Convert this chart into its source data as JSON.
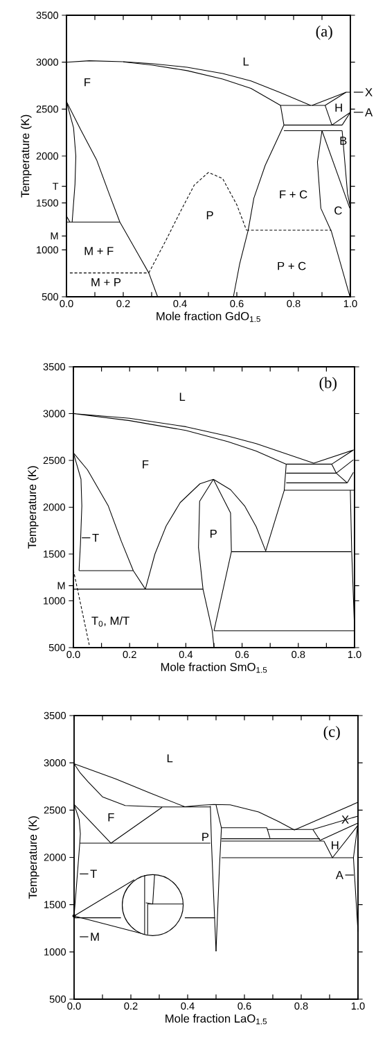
{
  "chart_data": [
    {
      "type": "line",
      "title": "(a)",
      "xlabel": "Mole fraction  GdO$_{1.5}$",
      "ylabel": "Temperature  (K)",
      "color": "#000000",
      "marker": "none",
      "line_style": "solid",
      "xlim": [
        0,
        1
      ],
      "ylim": [
        500,
        3500
      ],
      "xticks": [
        {
          "value": 0,
          "label": "0.0"
        },
        {
          "value": 0.1,
          "label": null
        },
        0.2,
        {
          "value": 0.3,
          "label": null
        },
        0.4,
        {
          "value": 0.5,
          "label": null
        },
        0.6,
        {
          "value": 0.7,
          "label": null
        },
        0.8,
        {
          "value": 0.9,
          "label": null
        },
        {
          "value": 1,
          "label": "1.0"
        }
      ],
      "yticks": [
        500,
        1000,
        {
          "value": 1148,
          "label": "M"
        },
        1500,
        {
          "value": 1677,
          "label": "T"
        },
        2000,
        2500,
        3000,
        3500
      ],
      "series": [
        {
          "x": [
            0,
            0.08,
            0.2,
            0.3,
            0.425,
            0.55,
            0.65,
            0.75,
            0.86
          ],
          "values": [
            3000,
            3015,
            3005,
            2985,
            2946,
            2880,
            2800,
            2680,
            2540
          ]
        },
        {
          "x": [
            0.2,
            0.3,
            0.425,
            0.55,
            0.65,
            0.754
          ],
          "values": [
            3003,
            2970,
            2910,
            2820,
            2720,
            2540
          ]
        },
        {
          "x": [
            0.754,
            0.911
          ],
          "values": [
            2540,
            2540
          ]
        },
        {
          "x": [
            0.754,
            0.766,
            0.7,
            0.66,
            0.64,
            0.61,
            0.588
          ],
          "values": [
            2540,
            2330,
            1900,
            1550,
            1209,
            850,
            500
          ]
        },
        {
          "x": [
            0.766,
            0.971
          ],
          "values": [
            2330,
            2330
          ]
        },
        {
          "x": [
            0.766,
            0.971
          ],
          "values": [
            2270,
            2270
          ]
        },
        {
          "x": [
            0.911,
            0.935
          ],
          "values": [
            2540,
            2330
          ]
        },
        {
          "x": [
            0.865,
            0.985,
            1.0
          ],
          "values": [
            2540,
            2680,
            2680
          ]
        },
        {
          "x": [
            0.911,
            0.985
          ],
          "values": [
            2540,
            2680
          ]
        },
        {
          "x": [
            0.935,
            1.0
          ],
          "values": [
            2330,
            2466
          ]
        },
        {
          "x": [
            0.971,
            1.0
          ],
          "values": [
            2330,
            2466
          ]
        },
        {
          "x": [
            0.971,
            0.99,
            1.0
          ],
          "values": [
            2270,
            1600,
            1450
          ]
        },
        {
          "x": [
            0.9,
            0.998
          ],
          "values": [
            2270,
            1443
          ]
        },
        {
          "x": [
            0.9,
            0.884,
            0.896,
            0.933,
            0.998
          ],
          "values": [
            2270,
            1936,
            1443,
            1197,
            507
          ]
        },
        {
          "x": [
            0.634,
            0.933
          ],
          "values": [
            1209,
            1209
          ],
          "line_style": "dashed"
        },
        {
          "x": [
            0.29,
            0.35,
            0.4,
            0.45,
            0.5,
            0.55,
            0.6,
            0.634
          ],
          "values": [
            754,
            1100,
            1400,
            1690,
            1825,
            1760,
            1480,
            1209
          ],
          "line_style": "dashed"
        },
        {
          "x": [
            0.012,
            0.29
          ],
          "values": [
            754,
            754
          ],
          "line_style": "dashed"
        },
        {
          "x": [
            0,
            0.05,
            0.106,
            0.15,
            0.188,
            0.253,
            0.29,
            0.321
          ],
          "values": [
            2580,
            2280,
            1960,
            1600,
            1296,
            951,
            754,
            500
          ]
        },
        {
          "x": [
            0,
            0.188
          ],
          "values": [
            1296,
            1296
          ]
        },
        {
          "x": [
            0,
            0.025,
            0.033,
            0.03,
            0.02
          ],
          "values": [
            2580,
            2300,
            2000,
            1700,
            1296
          ]
        },
        {
          "x": [
            0,
            0.012
          ],
          "values": [
            1360,
            1296
          ]
        }
      ],
      "annotations": [
        "L",
        "F",
        "M + F",
        "M + P",
        "P",
        "F + C",
        "P + C",
        "C",
        "H",
        "B",
        {
          "text": "X",
          "x": 1.0,
          "y": 2680
        },
        {
          "text": "A",
          "x": 1.0,
          "y": 2466
        }
      ]
    },
    {
      "type": "line",
      "title": "(b)",
      "xlabel": "Mole fraction SmO$_{1.5}$",
      "ylabel": "Temperature  (K)",
      "color": "#000000",
      "marker": "none",
      "line_style": "solid",
      "xlim": [
        0,
        1
      ],
      "ylim": [
        500,
        3500
      ],
      "xticks": [
        {
          "value": 0,
          "label": "0.0"
        },
        {
          "value": 0.1,
          "label": null
        },
        0.2,
        {
          "value": 0.3,
          "label": null
        },
        0.4,
        {
          "value": 0.5,
          "label": null
        },
        0.6,
        {
          "value": 0.7,
          "label": null
        },
        0.8,
        {
          "value": 0.9,
          "label": null
        },
        {
          "value": 1,
          "label": "1.0"
        }
      ],
      "yticks": [
        500,
        1000,
        {
          "value": 1162,
          "label": "M"
        },
        1500,
        2000,
        2500,
        3000,
        3500
      ],
      "series": [
        {
          "x": [
            0.684,
            0.75,
            0.757,
            0.65,
            0.55,
            0.4,
            0.2,
            0,
            0.2,
            0.4,
            0.55,
            0.65,
            0.855,
            0.996,
            0.919,
            0.935,
            0.974
          ],
          "values": [
            1532,
            2181,
            2460,
            2600,
            2700,
            2820,
            2925,
            3000,
            2950,
            2860,
            2760,
            2680,
            2470,
            2611,
            2460,
            2364,
            2260
          ]
        },
        {
          "x": [
            0.757,
            0.919
          ],
          "values": [
            2460,
            2460
          ]
        },
        {
          "x": [
            0.757,
            0.935
          ],
          "values": [
            2364,
            2364
          ]
        },
        {
          "x": [
            0.757,
            0.974
          ],
          "values": [
            2260,
            2260
          ]
        },
        {
          "x": [
            0.75,
            1.0
          ],
          "values": [
            2181,
            2181
          ]
        },
        {
          "x": [
            0.684,
            0.65,
            0.609,
            0.559,
            0.498
          ],
          "values": [
            1532,
            1793,
            2014,
            2187,
            2298
          ]
        },
        {
          "x": [
            0.256,
            0.29,
            0.33,
            0.38,
            0.45,
            0.498
          ],
          "values": [
            1125,
            1500,
            1800,
            2050,
            2250,
            2298
          ]
        },
        {
          "x": [
            0.498,
            0.449,
            0.445,
            0.461,
            0.494,
            0.5
          ],
          "values": [
            2298,
            2063,
            1569,
            1125,
            680,
            500
          ]
        },
        {
          "x": [
            0.498,
            0.559,
            0.562,
            0.5
          ],
          "values": [
            2298,
            1939,
            1525,
            680
          ]
        },
        {
          "x": [
            0.562,
            0.988
          ],
          "values": [
            1525,
            1525
          ]
        },
        {
          "x": [
            0.5,
            1.0
          ],
          "values": [
            680,
            680
          ]
        },
        {
          "x": [
            0,
            0.461
          ],
          "values": [
            1125,
            1125
          ]
        },
        {
          "x": [
            0.985,
            0.99,
            1.0
          ],
          "values": [
            2181,
            1525,
            700
          ]
        },
        {
          "x": [
            0.935,
            0.996
          ],
          "values": [
            2364,
            2507
          ]
        },
        {
          "x": [
            0.974,
            0.996
          ],
          "values": [
            2260,
            2372
          ]
        },
        {
          "x": [
            0,
            0.05,
            0.124,
            0.17,
            0.213,
            0.256
          ],
          "values": [
            2580,
            2400,
            2014,
            1640,
            1322,
            1125
          ]
        },
        {
          "x": [
            0.02,
            0.213
          ],
          "values": [
            1322,
            1322
          ]
        },
        {
          "x": [
            0,
            0.027,
            0.03,
            0.025,
            0.02
          ],
          "values": [
            2580,
            2300,
            2014,
            1600,
            1322
          ]
        },
        {
          "x": [
            0,
            0.057
          ],
          "values": [
            1330,
            520
          ],
          "line_style": "dashed"
        }
      ],
      "annotations": [
        "L",
        "F",
        "P",
        {
          "text": "T",
          "x": 0.03,
          "y": 1673
        },
        "T$_{0}$, M/T"
      ]
    },
    {
      "type": "line",
      "title": "(c)",
      "xlabel": "Mole fraction  LaO$_{1.5}$",
      "ylabel": "Temperature  (K)",
      "color": "#000000",
      "marker": "none",
      "line_style": "solid",
      "xlim": [
        0,
        1
      ],
      "ylim": [
        500,
        3500
      ],
      "xticks": [
        {
          "value": 0,
          "label": "0.0"
        },
        {
          "value": 0.1,
          "label": null
        },
        0.2,
        {
          "value": 0.3,
          "label": null
        },
        0.4,
        {
          "value": 0.5,
          "label": null
        },
        0.6,
        {
          "value": 0.7,
          "label": null
        },
        0.8,
        {
          "value": 0.9,
          "label": null
        },
        {
          "value": 1,
          "label": "1.0"
        }
      ],
      "yticks": [
        500,
        1000,
        1500,
        2000,
        2500,
        3000,
        3500
      ],
      "series": [
        {
          "x": [
            0.48,
            0.3,
            0.18,
            0.1,
            0.049,
            0.02,
            0,
            0.146,
            0.268,
            0.39,
            0.44,
            0.492,
            0.55,
            0.65,
            0.72,
            0.776,
            1.0
          ],
          "values": [
            2534,
            2534,
            2548,
            2640,
            2800,
            2900,
            2990,
            2830,
            2680,
            2535,
            2550,
            2559,
            2555,
            2480,
            2380,
            2290,
            2583
          ]
        },
        {
          "x": [
            0,
            0.13,
            0.31
          ],
          "values": [
            2560,
            2150,
            2530
          ]
        },
        {
          "x": [
            0,
            0.018,
            0.022,
            0.02,
            0.01,
            0
          ],
          "values": [
            2560,
            2400,
            2250,
            2150,
            1760,
            1380
          ]
        },
        {
          "x": [
            0.02,
            0.48
          ],
          "values": [
            2150,
            2150
          ]
        },
        {
          "x": [
            0,
            0.165
          ],
          "values": [
            1361,
            1361
          ]
        },
        {
          "x": [
            0.39,
            0.496
          ],
          "values": [
            1361,
            1361
          ]
        },
        {
          "x": [
            0.48,
            0.484,
            0.49,
            0.5
          ],
          "values": [
            2545,
            2150,
            1700,
            1006
          ]
        },
        {
          "x": [
            0.5,
            0.519,
            0.512,
            0.5
          ],
          "values": [
            2555,
            2310,
            1900,
            1006
          ]
        },
        {
          "x": [
            0.519,
            0.679
          ],
          "values": [
            2314,
            2314
          ]
        },
        {
          "x": [
            0.679,
            0.69
          ],
          "values": [
            2314,
            2204
          ]
        },
        {
          "x": [
            0.68,
            0.841,
            1.0
          ],
          "values": [
            2295,
            2295,
            2437
          ]
        },
        {
          "x": [
            0.519,
            0.866
          ],
          "values": [
            2197,
            2197
          ]
        },
        {
          "x": [
            0.519,
            0.88
          ],
          "values": [
            2172,
            2172
          ]
        },
        {
          "x": [
            0.841,
            0.866
          ],
          "values": [
            2295,
            2180
          ]
        },
        {
          "x": [
            0.866,
            1.0
          ],
          "values": [
            2180,
            2363
          ]
        },
        {
          "x": [
            0.88,
            0.91,
            1.0
          ],
          "values": [
            2172,
            1996,
            2340
          ]
        },
        {
          "x": [
            0.519,
            0.984
          ],
          "values": [
            1996,
            1996
          ]
        },
        {
          "x": [
            1.0,
            0.984,
            1.0
          ],
          "values": [
            2363,
            1996,
            1214
          ]
        }
      ],
      "annotations": [
        "L",
        "F",
        "P",
        "X",
        "H",
        {
          "text": "A",
          "x": 0.985,
          "y": 1813
        },
        {
          "text": "T",
          "x": 0.02,
          "y": 1825
        },
        "M"
      ]
    }
  ]
}
